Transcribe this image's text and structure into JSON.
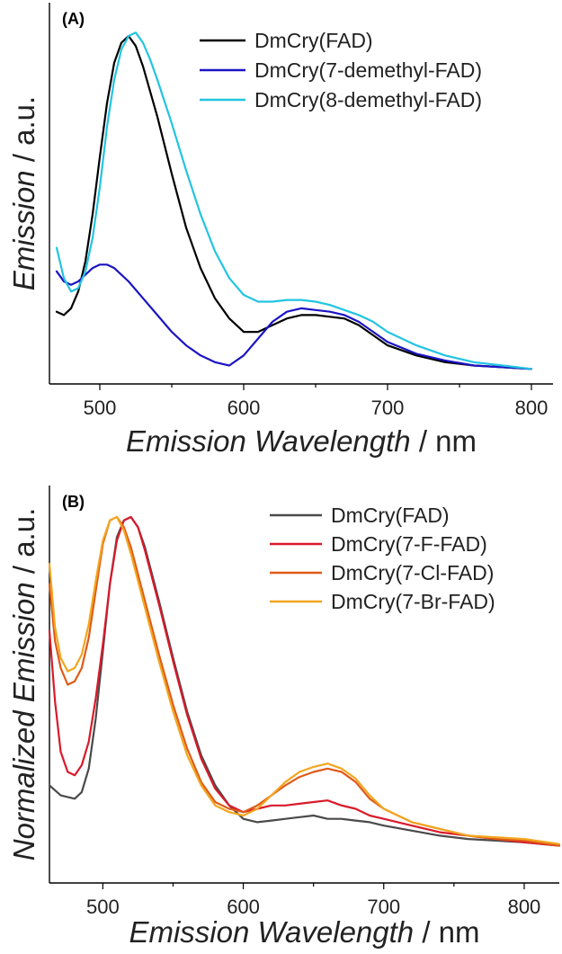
{
  "chart_data": [
    {
      "type": "line",
      "panel_label": "(A)",
      "xlabel_italic": "Emission Wavelength",
      "xlabel_unit": " / nm",
      "ylabel": "Emission / a.u.",
      "xlim": [
        465,
        815
      ],
      "ylim": [
        0,
        1.0
      ],
      "xticks": [
        500,
        600,
        700,
        800
      ],
      "legend_position": "top-right",
      "series": [
        {
          "name": "DmCry(FAD)",
          "color": "#000000",
          "x": [
            470,
            475,
            480,
            485,
            490,
            495,
            500,
            505,
            510,
            515,
            520,
            525,
            530,
            540,
            550,
            560,
            570,
            580,
            590,
            600,
            610,
            620,
            630,
            640,
            650,
            660,
            670,
            680,
            690,
            700,
            720,
            740,
            760,
            780,
            800
          ],
          "y": [
            0.18,
            0.17,
            0.19,
            0.24,
            0.33,
            0.47,
            0.64,
            0.8,
            0.92,
            0.98,
            1.0,
            0.97,
            0.91,
            0.76,
            0.59,
            0.43,
            0.31,
            0.22,
            0.16,
            0.12,
            0.12,
            0.14,
            0.16,
            0.17,
            0.17,
            0.165,
            0.16,
            0.14,
            0.11,
            0.08,
            0.05,
            0.03,
            0.02,
            0.015,
            0.01
          ]
        },
        {
          "name": "DmCry(7-demethyl-FAD)",
          "color": "#1b14c4",
          "x": [
            470,
            475,
            480,
            485,
            490,
            495,
            500,
            505,
            510,
            520,
            530,
            540,
            550,
            560,
            570,
            580,
            590,
            600,
            610,
            620,
            630,
            640,
            650,
            660,
            670,
            680,
            690,
            700,
            720,
            740,
            760,
            780,
            800
          ],
          "y": [
            0.3,
            0.27,
            0.26,
            0.27,
            0.29,
            0.31,
            0.32,
            0.32,
            0.31,
            0.27,
            0.22,
            0.17,
            0.12,
            0.08,
            0.05,
            0.03,
            0.02,
            0.05,
            0.1,
            0.15,
            0.18,
            0.19,
            0.185,
            0.18,
            0.17,
            0.15,
            0.12,
            0.09,
            0.055,
            0.035,
            0.02,
            0.015,
            0.01
          ]
        },
        {
          "name": "DmCry(8-demethyl-FAD)",
          "color": "#22c4e2",
          "x": [
            470,
            475,
            480,
            485,
            490,
            495,
            500,
            505,
            510,
            515,
            520,
            525,
            530,
            535,
            540,
            550,
            560,
            570,
            580,
            590,
            600,
            610,
            620,
            630,
            640,
            650,
            660,
            670,
            680,
            690,
            700,
            720,
            740,
            760,
            780,
            800
          ],
          "y": [
            0.37,
            0.28,
            0.24,
            0.25,
            0.3,
            0.4,
            0.55,
            0.73,
            0.87,
            0.96,
            1.0,
            1.01,
            0.98,
            0.93,
            0.87,
            0.74,
            0.6,
            0.47,
            0.36,
            0.28,
            0.23,
            0.21,
            0.21,
            0.215,
            0.215,
            0.21,
            0.2,
            0.185,
            0.17,
            0.15,
            0.12,
            0.08,
            0.05,
            0.03,
            0.02,
            0.01
          ]
        }
      ]
    },
    {
      "type": "line",
      "panel_label": "(B)",
      "xlabel_italic": "Emission Wavelength",
      "xlabel_unit": " / nm",
      "ylabel_italic": "Normalized Emission",
      "ylabel_unit": " / a.u.",
      "xlim": [
        462,
        825
      ],
      "ylim": [
        0,
        1.0
      ],
      "xticks": [
        500,
        600,
        700,
        800
      ],
      "legend_position": "top-right",
      "series": [
        {
          "name": "DmCry(FAD)",
          "color": "#4a4a4a",
          "x": [
            462,
            470,
            480,
            485,
            490,
            495,
            500,
            505,
            510,
            515,
            520,
            525,
            530,
            540,
            550,
            560,
            570,
            580,
            590,
            600,
            610,
            620,
            630,
            640,
            650,
            660,
            670,
            680,
            690,
            700,
            720,
            740,
            760,
            780,
            800,
            825
          ],
          "y": [
            0.2,
            0.17,
            0.16,
            0.18,
            0.25,
            0.4,
            0.6,
            0.8,
            0.94,
            0.99,
            1.0,
            0.97,
            0.91,
            0.75,
            0.58,
            0.42,
            0.29,
            0.2,
            0.14,
            0.1,
            0.09,
            0.095,
            0.1,
            0.105,
            0.11,
            0.1,
            0.1,
            0.095,
            0.09,
            0.08,
            0.065,
            0.05,
            0.04,
            0.035,
            0.03,
            0.02
          ]
        },
        {
          "name": "DmCry(7-F-FAD)",
          "color": "#d91a2a",
          "x": [
            462,
            466,
            470,
            475,
            480,
            485,
            490,
            495,
            500,
            505,
            510,
            515,
            520,
            525,
            530,
            540,
            550,
            560,
            570,
            580,
            590,
            600,
            610,
            620,
            630,
            640,
            650,
            660,
            670,
            680,
            690,
            700,
            720,
            740,
            760,
            780,
            800,
            825
          ],
          "y": [
            0.66,
            0.45,
            0.3,
            0.24,
            0.23,
            0.26,
            0.33,
            0.46,
            0.62,
            0.8,
            0.93,
            0.99,
            1.0,
            0.97,
            0.9,
            0.74,
            0.57,
            0.41,
            0.28,
            0.19,
            0.14,
            0.12,
            0.13,
            0.14,
            0.14,
            0.145,
            0.15,
            0.155,
            0.14,
            0.13,
            0.11,
            0.1,
            0.08,
            0.06,
            0.05,
            0.04,
            0.03,
            0.02
          ]
        },
        {
          "name": "DmCry(7-Cl-FAD)",
          "color": "#e05a18",
          "x": [
            462,
            466,
            470,
            475,
            480,
            485,
            490,
            495,
            500,
            505,
            510,
            515,
            520,
            525,
            530,
            540,
            550,
            560,
            570,
            580,
            590,
            600,
            610,
            620,
            630,
            640,
            650,
            660,
            670,
            680,
            690,
            700,
            720,
            740,
            760,
            780,
            800,
            825
          ],
          "y": [
            0.8,
            0.63,
            0.55,
            0.5,
            0.51,
            0.55,
            0.64,
            0.78,
            0.92,
            0.99,
            1.0,
            0.97,
            0.91,
            0.83,
            0.75,
            0.59,
            0.44,
            0.31,
            0.21,
            0.15,
            0.13,
            0.12,
            0.14,
            0.17,
            0.2,
            0.225,
            0.24,
            0.25,
            0.24,
            0.21,
            0.16,
            0.13,
            0.09,
            0.07,
            0.05,
            0.04,
            0.035,
            0.02
          ]
        },
        {
          "name": "DmCry(7-Br-FAD)",
          "color": "#f2a61f",
          "x": [
            462,
            466,
            470,
            475,
            480,
            485,
            490,
            495,
            500,
            505,
            510,
            515,
            520,
            525,
            530,
            540,
            550,
            560,
            570,
            580,
            590,
            600,
            610,
            620,
            630,
            640,
            650,
            660,
            670,
            680,
            690,
            700,
            720,
            740,
            760,
            780,
            800,
            825
          ],
          "y": [
            0.86,
            0.67,
            0.58,
            0.54,
            0.55,
            0.59,
            0.68,
            0.81,
            0.93,
            0.99,
            1.0,
            0.96,
            0.89,
            0.81,
            0.73,
            0.57,
            0.42,
            0.29,
            0.2,
            0.14,
            0.12,
            0.11,
            0.13,
            0.17,
            0.21,
            0.24,
            0.255,
            0.265,
            0.25,
            0.22,
            0.17,
            0.13,
            0.09,
            0.07,
            0.05,
            0.045,
            0.04,
            0.025
          ]
        }
      ]
    }
  ]
}
